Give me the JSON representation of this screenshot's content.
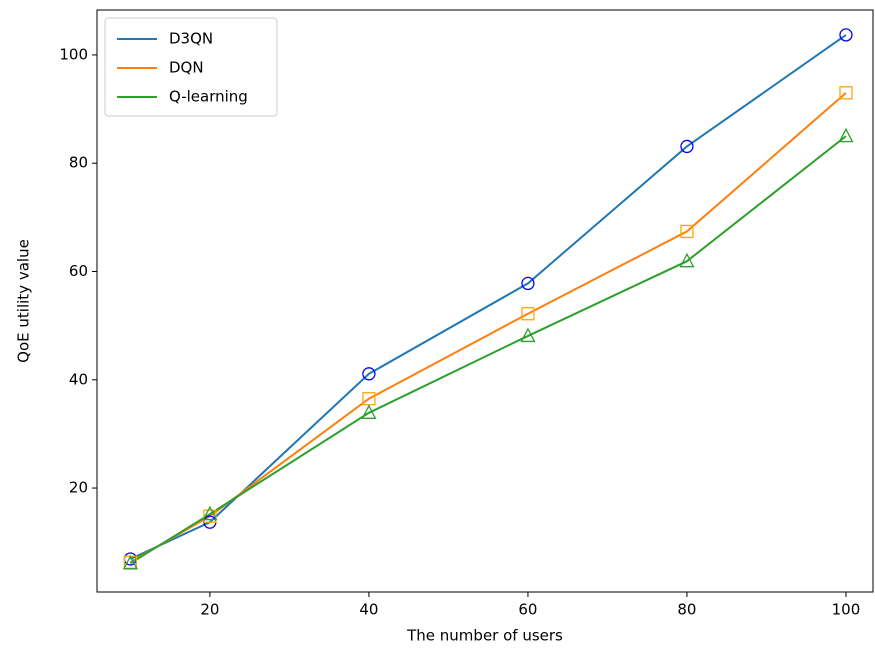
{
  "chart_data": {
    "type": "line",
    "xlabel": "The number of users",
    "ylabel": "QoE utility value",
    "x": [
      10,
      20,
      40,
      60,
      80,
      100
    ],
    "series": [
      {
        "name": "D3QN",
        "color": "#1f77b4",
        "marker": "circle",
        "marker_color": "#0000ff",
        "values": [
          6.9,
          13.7,
          41.1,
          57.8,
          83.1,
          103.7
        ]
      },
      {
        "name": "DQN",
        "color": "#ff7f0e",
        "marker": "square",
        "marker_color": "#ffa500",
        "values": [
          6.3,
          14.8,
          36.5,
          52.2,
          67.4,
          93.0
        ]
      },
      {
        "name": "Q-learning",
        "color": "#2ca02c",
        "marker": "triangle",
        "marker_color": "#2ca02c",
        "values": [
          6.1,
          15.2,
          33.9,
          48.1,
          61.9,
          85.0
        ]
      }
    ],
    "xlim": [
      5.8,
      103.4
    ],
    "xticks": [
      20,
      40,
      60,
      80,
      100
    ],
    "ylim": [
      0.8,
      108.3
    ],
    "yticks": [
      20,
      40,
      60,
      80,
      100
    ],
    "grid": false,
    "legend": "upper left"
  }
}
